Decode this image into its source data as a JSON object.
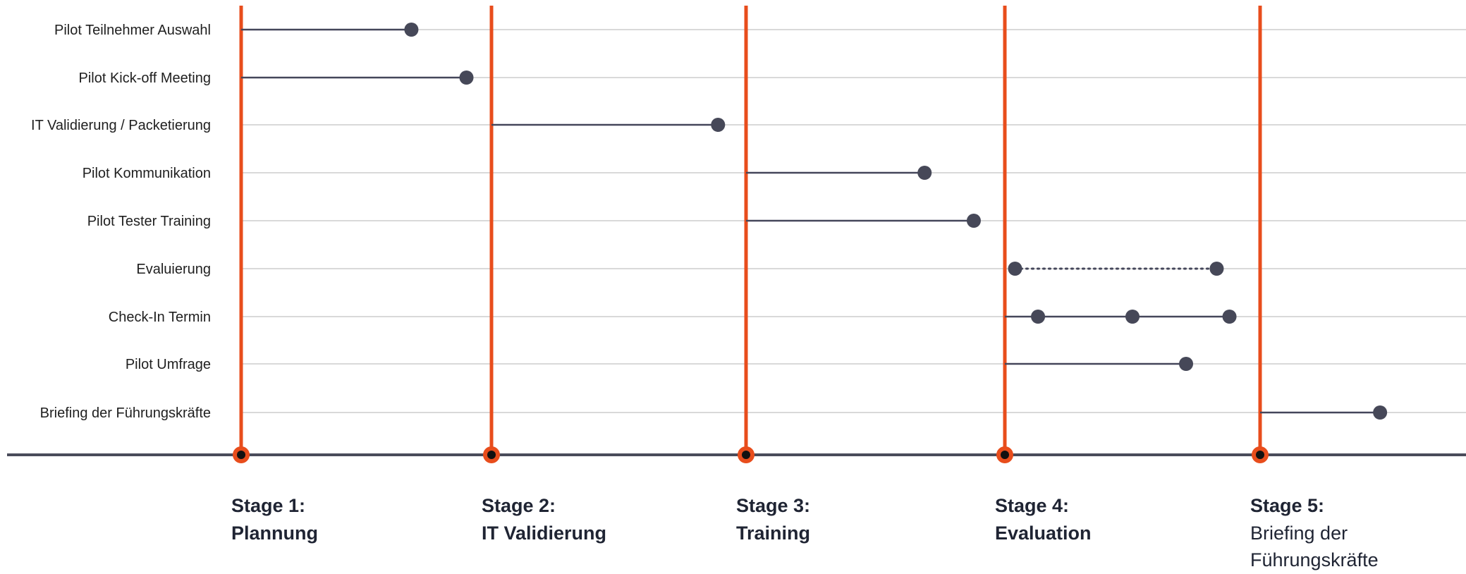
{
  "colors": {
    "stage_line": "#e84d1c",
    "axis": "#4a4c5a",
    "connector": "#44465a",
    "dot": "#464858",
    "gridline": "#d9d9d9",
    "text": "#1f1f1f"
  },
  "stages": [
    {
      "id": "s1",
      "number": "Stage 1:",
      "title": [
        "Plannung"
      ],
      "title_bold": true
    },
    {
      "id": "s2",
      "number": "Stage 2:",
      "title": [
        "IT Validierung"
      ],
      "title_bold": true
    },
    {
      "id": "s3",
      "number": "Stage 3:",
      "title": [
        "Training"
      ],
      "title_bold": true
    },
    {
      "id": "s4",
      "number": "Stage 4:",
      "title": [
        "Evaluation"
      ],
      "title_bold": true
    },
    {
      "id": "s5",
      "number": "Stage 5:",
      "title": [
        "Briefing der",
        "Führungskräfte"
      ],
      "title_bold": false
    }
  ],
  "tasks": [
    {
      "label": "Pilot Teilnehmer Auswahl",
      "start_stage": 1,
      "connector": "solid",
      "markers": [
        1.68
      ]
    },
    {
      "label": "Pilot Kick-off Meeting",
      "start_stage": 1,
      "connector": "solid",
      "markers": [
        1.9
      ]
    },
    {
      "label": "IT Validierung / Packetierung",
      "start_stage": 2,
      "connector": "solid",
      "markers": [
        2.89
      ]
    },
    {
      "label": "Pilot Kommunikation",
      "start_stage": 3,
      "connector": "solid",
      "markers": [
        3.69
      ]
    },
    {
      "label": "Pilot Tester Training",
      "start_stage": 3,
      "connector": "solid",
      "markers": [
        3.88
      ]
    },
    {
      "label": "Evaluierung",
      "start_stage": 4,
      "connector": "dotted",
      "markers": [
        4.04,
        4.83
      ]
    },
    {
      "label": "Check-In Termin",
      "start_stage": 4,
      "connector": "solid",
      "markers": [
        4.13,
        4.5,
        4.88
      ]
    },
    {
      "label": "Pilot Umfrage",
      "start_stage": 4,
      "connector": "solid",
      "markers": [
        4.71
      ]
    },
    {
      "label": "Briefing der Führungskräfte",
      "start_stage": 5,
      "connector": "solid",
      "markers": [
        5.47
      ]
    }
  ]
}
